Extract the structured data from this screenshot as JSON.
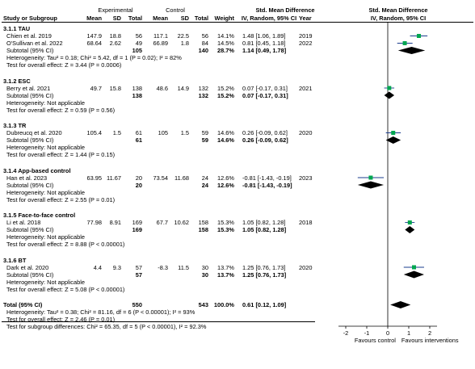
{
  "header": {
    "group_experimental": "Experimental",
    "group_control": "Control",
    "smd_title": "Std. Mean Difference",
    "smd_title_right": "Std. Mean Difference",
    "col_study": "Study or Subgroup",
    "col_mean": "Mean",
    "col_sd": "SD",
    "col_total": "Total",
    "col_mean2": "Mean",
    "col_sd2": "SD",
    "col_total2": "Total",
    "col_weight": "Weight",
    "col_ci": "IV, Random, 95% CI",
    "col_year": "Year",
    "col_ci_right": "IV, Random, 95% CI"
  },
  "rows": [
    {
      "kind": "group",
      "label": "3.1.1 TAU"
    },
    {
      "kind": "study",
      "label": "Chien et al. 2019",
      "em": "147.9",
      "esd": "18.8",
      "en": "56",
      "cm": "117.1",
      "csd": "22.5",
      "cn": "56",
      "w": "14.1%",
      "ci": "1.48 [1.06, 1.89]",
      "year": "2019"
    },
    {
      "kind": "study",
      "label": "O'Sullivan et al. 2022",
      "em": "68.64",
      "esd": "2.62",
      "en": "49",
      "cm": "66.89",
      "csd": "1.8",
      "cn": "84",
      "w": "14.5%",
      "ci": "0.81 [0.45, 1.18]",
      "year": "2022"
    },
    {
      "kind": "subtotal",
      "label": "Subtotal (95% CI)",
      "en": "105",
      "cn": "140",
      "w": "28.7%",
      "ci": "1.14 [0.49, 1.78]"
    },
    {
      "kind": "note",
      "label": "Heterogeneity: Tau² = 0.18; Chi² = 5.42, df = 1 (P = 0.02); I² = 82%"
    },
    {
      "kind": "note",
      "label": "Test for overall effect: Z = 3.44 (P = 0.0006)"
    },
    {
      "kind": "gap"
    },
    {
      "kind": "group",
      "label": "3.1.2 ESC"
    },
    {
      "kind": "study",
      "label": "Berry et al. 2021",
      "em": "49.7",
      "esd": "15.8",
      "en": "138",
      "cm": "48.6",
      "csd": "14.9",
      "cn": "132",
      "w": "15.2%",
      "ci": "0.07 [-0.17, 0.31]",
      "year": "2021"
    },
    {
      "kind": "subtotal",
      "label": "Subtotal (95% CI)",
      "en": "138",
      "cn": "132",
      "w": "15.2%",
      "ci": "0.07 [-0.17, 0.31]"
    },
    {
      "kind": "note",
      "label": "Heterogeneity: Not applicable"
    },
    {
      "kind": "note",
      "label": "Test for overall effect: Z = 0.59 (P = 0.56)"
    },
    {
      "kind": "gap"
    },
    {
      "kind": "group",
      "label": "3.1.3 TR"
    },
    {
      "kind": "study",
      "label": "Dubreucq et al. 2020",
      "em": "105.4",
      "esd": "1.5",
      "en": "61",
      "cm": "105",
      "csd": "1.5",
      "cn": "59",
      "w": "14.6%",
      "ci": "0.26 [-0.09, 0.62]",
      "year": "2020"
    },
    {
      "kind": "subtotal",
      "label": "Subtotal (95% CI)",
      "en": "61",
      "cn": "59",
      "w": "14.6%",
      "ci": "0.26 [-0.09, 0.62]"
    },
    {
      "kind": "note",
      "label": "Heterogeneity: Not applicable"
    },
    {
      "kind": "note",
      "label": "Test for overall effect: Z = 1.44 (P = 0.15)"
    },
    {
      "kind": "gap"
    },
    {
      "kind": "group",
      "label": "3.1.4 App-based control"
    },
    {
      "kind": "study",
      "label": "Han et al. 2023",
      "em": "63.95",
      "esd": "11.67",
      "en": "20",
      "cm": "73.54",
      "csd": "11.68",
      "cn": "24",
      "w": "12.6%",
      "ci": "-0.81 [-1.43, -0.19]",
      "year": "2023"
    },
    {
      "kind": "subtotal",
      "label": "Subtotal (95% CI)",
      "en": "20",
      "cn": "24",
      "w": "12.6%",
      "ci": "-0.81 [-1.43, -0.19]"
    },
    {
      "kind": "note",
      "label": "Heterogeneity: Not applicable"
    },
    {
      "kind": "note",
      "label": "Test for overall effect: Z = 2.55 (P = 0.01)"
    },
    {
      "kind": "gap"
    },
    {
      "kind": "group",
      "label": "3.1.5 Face-to-face control"
    },
    {
      "kind": "study",
      "label": "Li et al. 2018",
      "em": "77.98",
      "esd": "8.91",
      "en": "169",
      "cm": "67.7",
      "csd": "10.62",
      "cn": "158",
      "w": "15.3%",
      "ci": "1.05 [0.82, 1.28]",
      "year": "2018"
    },
    {
      "kind": "subtotal",
      "label": "Subtotal (95% CI)",
      "en": "169",
      "cn": "158",
      "w": "15.3%",
      "ci": "1.05 [0.82, 1.28]"
    },
    {
      "kind": "note",
      "label": "Heterogeneity: Not applicable"
    },
    {
      "kind": "note",
      "label": "Test for overall effect: Z = 8.88 (P < 0.00001)"
    },
    {
      "kind": "gap"
    },
    {
      "kind": "group",
      "label": "3.1.6 BT"
    },
    {
      "kind": "study",
      "label": "Dark et al. 2020",
      "em": "4.4",
      "esd": "9.3",
      "en": "57",
      "cm": "-8.3",
      "csd": "11.5",
      "cn": "30",
      "w": "13.7%",
      "ci": "1.25 [0.76, 1.73]",
      "year": "2020"
    },
    {
      "kind": "subtotal",
      "label": "Subtotal (95% CI)",
      "en": "57",
      "cn": "30",
      "w": "13.7%",
      "ci": "1.25 [0.76, 1.73]"
    },
    {
      "kind": "note",
      "label": "Heterogeneity: Not applicable"
    },
    {
      "kind": "note",
      "label": "Test for overall effect: Z = 5.08 (P < 0.00001)"
    },
    {
      "kind": "gap"
    },
    {
      "kind": "total",
      "label": "Total (95% CI)",
      "en": "550",
      "cn": "543",
      "w": "100.0%",
      "ci": "0.61 [0.12, 1.09]"
    },
    {
      "kind": "note",
      "label": "Heterogeneity: Tau² = 0.38; Chi² = 81.16, df = 6 (P < 0.00001); I² = 93%"
    },
    {
      "kind": "note",
      "label": "Test for overall effect: Z = 2.46 (P = 0.01)"
    },
    {
      "kind": "note",
      "label": "Test for subgroup differences: Chi² = 65.35, df = 5 (P < 0.00001), I² = 92.3%"
    }
  ],
  "chart_data": {
    "type": "forest",
    "xlim": [
      -2.5,
      2.5
    ],
    "ticks": [
      "-2",
      "-1",
      "0",
      "1",
      "2"
    ],
    "favours_left": "Favours control",
    "favours_right": "Favours interventions",
    "colors": {
      "square": "#00a650",
      "ci_line": "#1a3c8c",
      "diamond": "#000000"
    },
    "studies": [
      {
        "name": "Chien et al. 2019",
        "est": 1.48,
        "lo": 1.06,
        "hi": 1.89
      },
      {
        "name": "O'Sullivan et al. 2022",
        "est": 0.81,
        "lo": 0.45,
        "hi": 1.18
      },
      {
        "name": "Berry et al. 2021",
        "est": 0.07,
        "lo": -0.17,
        "hi": 0.31
      },
      {
        "name": "Dubreucq et al. 2020",
        "est": 0.26,
        "lo": -0.09,
        "hi": 0.62
      },
      {
        "name": "Han et al. 2023",
        "est": -0.81,
        "lo": -1.43,
        "hi": -0.19
      },
      {
        "name": "Li et al. 2018",
        "est": 1.05,
        "lo": 0.82,
        "hi": 1.28
      },
      {
        "name": "Dark et al. 2020",
        "est": 1.25,
        "lo": 0.76,
        "hi": 1.73
      }
    ],
    "subtotals": [
      {
        "name": "3.1.1 TAU",
        "est": 1.14,
        "lo": 0.49,
        "hi": 1.78
      },
      {
        "name": "3.1.2 ESC",
        "est": 0.07,
        "lo": -0.17,
        "hi": 0.31
      },
      {
        "name": "3.1.3 TR",
        "est": 0.26,
        "lo": -0.09,
        "hi": 0.62
      },
      {
        "name": "3.1.4 App-based control",
        "est": -0.81,
        "lo": -1.43,
        "hi": -0.19
      },
      {
        "name": "3.1.5 Face-to-face control",
        "est": 1.05,
        "lo": 0.82,
        "hi": 1.28
      },
      {
        "name": "3.1.6 BT",
        "est": 1.25,
        "lo": 0.76,
        "hi": 1.73
      }
    ],
    "total": {
      "name": "Total (95% CI)",
      "est": 0.61,
      "lo": 0.12,
      "hi": 1.09
    }
  }
}
